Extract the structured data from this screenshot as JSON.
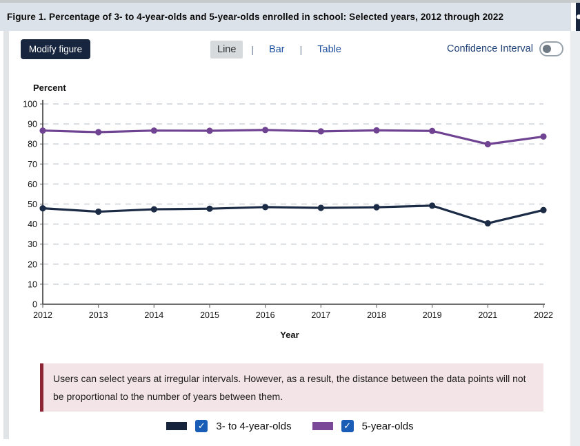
{
  "header": {
    "title": "Figure 1. Percentage of 3- to 4-year-olds and 5-year-olds enrolled in school: Selected years, 2012 through 2022"
  },
  "toolbar": {
    "modify_button": "Modify figure",
    "separator": "|",
    "views": [
      {
        "label": "Line",
        "selected": true
      },
      {
        "label": "Bar",
        "selected": false
      },
      {
        "label": "Table",
        "selected": false
      }
    ],
    "confidence_toggle": {
      "label": "Confidence Interval",
      "state": "off"
    }
  },
  "chart_data": {
    "type": "line",
    "title": "",
    "xlabel": "Year",
    "ylabel": "Percent",
    "ylim": [
      0,
      100
    ],
    "ytick_step": 10,
    "grid": "dashed horizontal",
    "legend_position": "bottom",
    "categories": [
      "2012",
      "2013",
      "2014",
      "2015",
      "2016",
      "2017",
      "2018",
      "2019",
      "2021",
      "2022"
    ],
    "series": [
      {
        "name": "3- to 4-year-olds",
        "color": "#1b2a45",
        "values": [
          47.9,
          46.2,
          47.4,
          47.7,
          48.5,
          48.1,
          48.4,
          49.2,
          40.4,
          47.0
        ]
      },
      {
        "name": "5-year-olds",
        "color": "#6f4392",
        "values": [
          86.7,
          85.9,
          86.7,
          86.6,
          87.0,
          86.3,
          86.8,
          86.5,
          79.9,
          83.7
        ]
      }
    ]
  },
  "note": {
    "text": "Users can select years at irregular intervals. However, as a result, the distance between the data points will not be proportional to the number of years between them."
  },
  "legend": {
    "check_glyph": "✓",
    "items": [
      {
        "label": "3- to 4-year-olds",
        "color": "#16233c",
        "checked": true
      },
      {
        "label": "5-year-olds",
        "color": "#7a4a99",
        "checked": true
      }
    ]
  },
  "colors": {
    "header_bg": "#dce2e9",
    "accent_navy": "#17253f",
    "link_blue": "#1d4e9e",
    "note_bg": "#f3e4e7",
    "note_border": "#8c2433",
    "checkbox_blue": "#1a5db6",
    "gridline": "#d9dde1",
    "axis": "#555555"
  }
}
